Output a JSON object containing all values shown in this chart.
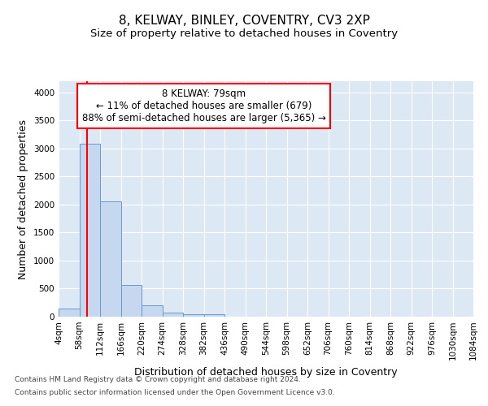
{
  "title": "8, KELWAY, BINLEY, COVENTRY, CV3 2XP",
  "subtitle": "Size of property relative to detached houses in Coventry",
  "xlabel": "Distribution of detached houses by size in Coventry",
  "ylabel": "Number of detached properties",
  "bin_edges": [
    4,
    58,
    112,
    166,
    220,
    274,
    328,
    382,
    436,
    490,
    544,
    598,
    652,
    706,
    760,
    814,
    868,
    922,
    976,
    1030,
    1084
  ],
  "bin_counts": [
    150,
    3080,
    2060,
    560,
    210,
    75,
    45,
    45,
    0,
    0,
    0,
    0,
    0,
    0,
    0,
    0,
    0,
    0,
    0,
    0
  ],
  "bar_color": "#c5d8f0",
  "bar_edge_color": "#6699cc",
  "property_size": 79,
  "property_line_color": "red",
  "annotation_text": "8 KELWAY: 79sqm\n← 11% of detached houses are smaller (679)\n88% of semi-detached houses are larger (5,365) →",
  "annotation_box_color": "white",
  "annotation_box_edge_color": "red",
  "ylim": [
    0,
    4200
  ],
  "yticks": [
    0,
    500,
    1000,
    1500,
    2000,
    2500,
    3000,
    3500,
    4000
  ],
  "footnote1": "Contains HM Land Registry data © Crown copyright and database right 2024.",
  "footnote2": "Contains public sector information licensed under the Open Government Licence v3.0.",
  "background_color": "#dde8f5",
  "title_fontsize": 11,
  "subtitle_fontsize": 9.5,
  "axis_label_fontsize": 9,
  "tick_fontsize": 7.5,
  "footnote_fontsize": 6.5
}
